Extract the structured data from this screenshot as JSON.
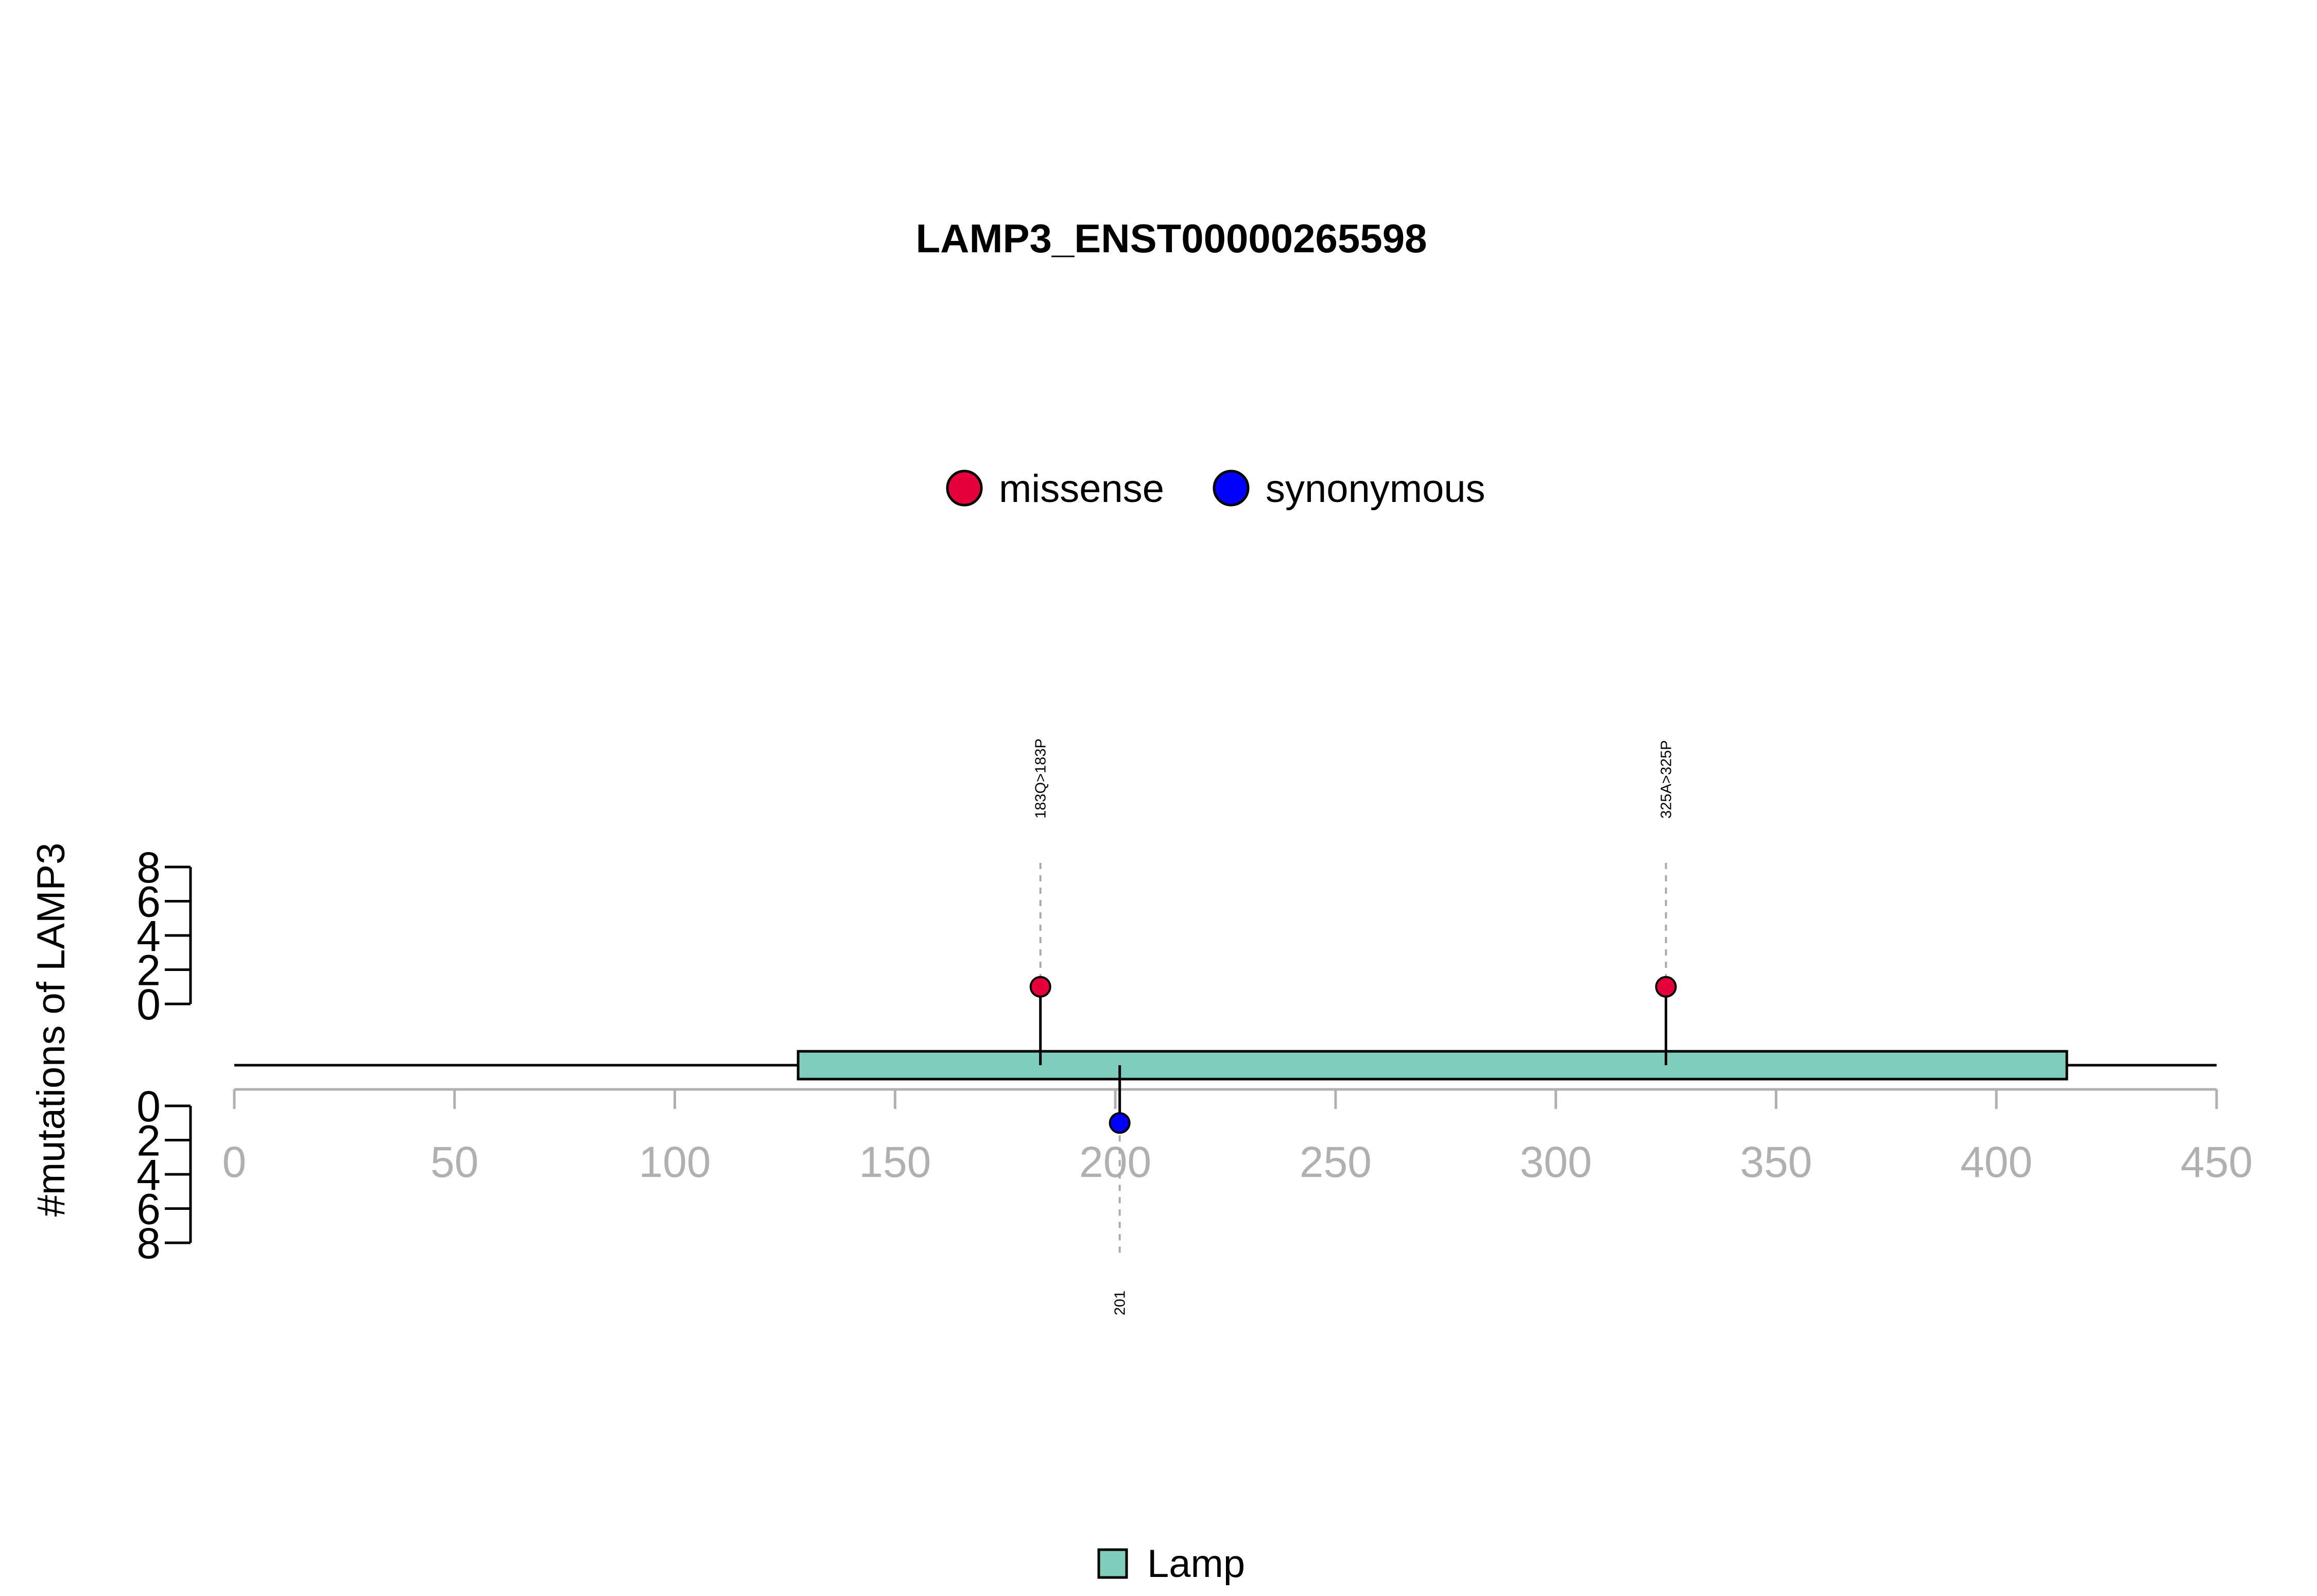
{
  "chart_data": {
    "type": "lollipop",
    "title": "LAMP3_ENST00000265598",
    "ylabel": "#mutations of LAMP3",
    "xlim": [
      0,
      450
    ],
    "x_ticks": [
      0,
      50,
      100,
      150,
      200,
      250,
      300,
      350,
      400,
      450
    ],
    "y_ticks_top": [
      0,
      2,
      4,
      6,
      8
    ],
    "y_ticks_bottom": [
      0,
      2,
      4,
      6,
      8
    ],
    "protein_length": 416,
    "mutation_types": [
      {
        "name": "missense",
        "color": "#E5003C"
      },
      {
        "name": "synonymous",
        "color": "#0000FF"
      }
    ],
    "domains": [
      {
        "name": "Lamp",
        "start": 128,
        "end": 416,
        "color": "#7FCDBB"
      }
    ],
    "mutations": [
      {
        "label": "183Q>183P",
        "position": 183,
        "count": 1,
        "type": "missense",
        "side": "top"
      },
      {
        "label": "325A>325P",
        "position": 325,
        "count": 1,
        "type": "missense",
        "side": "top"
      },
      {
        "label": "201",
        "position": 201,
        "count": 1,
        "type": "synonymous",
        "side": "bottom"
      }
    ]
  }
}
